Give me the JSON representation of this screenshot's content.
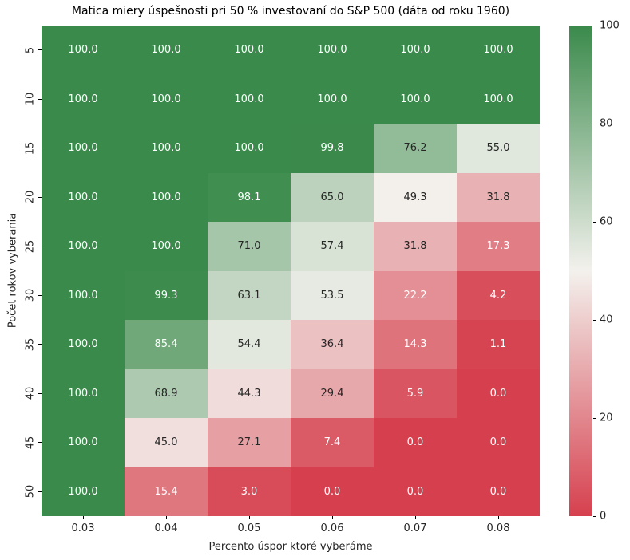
{
  "chart_data": {
    "type": "heatmap",
    "title": "Matica miery úspešnosti pri 50 % investovaní do S&P 500 (dáta od roku 1960)",
    "xlabel": "Percento úspor ktoré vyberáme",
    "ylabel": "Počet rokov vyberania",
    "x_tick_labels": [
      "0.03",
      "0.04",
      "0.05",
      "0.06",
      "0.07",
      "0.08"
    ],
    "y_tick_labels": [
      "5",
      "10",
      "15",
      "20",
      "25",
      "30",
      "35",
      "40",
      "45",
      "50"
    ],
    "values": [
      [
        100.0,
        100.0,
        100.0,
        100.0,
        100.0,
        100.0
      ],
      [
        100.0,
        100.0,
        100.0,
        100.0,
        100.0,
        100.0
      ],
      [
        100.0,
        100.0,
        100.0,
        99.8,
        76.2,
        55.0
      ],
      [
        100.0,
        100.0,
        98.1,
        65.0,
        49.3,
        31.8
      ],
      [
        100.0,
        100.0,
        71.0,
        57.4,
        31.8,
        17.3
      ],
      [
        100.0,
        99.3,
        63.1,
        53.5,
        22.2,
        4.2
      ],
      [
        100.0,
        85.4,
        54.4,
        36.4,
        14.3,
        1.1
      ],
      [
        100.0,
        68.9,
        44.3,
        29.4,
        5.9,
        0.0
      ],
      [
        100.0,
        45.0,
        27.1,
        7.4,
        0.0,
        0.0
      ],
      [
        100.0,
        15.4,
        3.0,
        0.0,
        0.0,
        0.0
      ]
    ],
    "value_range": [
      0,
      100
    ],
    "annotation_decimals": 1,
    "colorbar_ticks": [
      0,
      20,
      40,
      60,
      80,
      100
    ],
    "colorbar_position": "right",
    "grid": false,
    "colormap": {
      "low": "#d6404e",
      "mid": "#f3f1ed",
      "high": "#3a8a4b",
      "text_dark": "#262626",
      "text_light": "#ffffff"
    }
  }
}
